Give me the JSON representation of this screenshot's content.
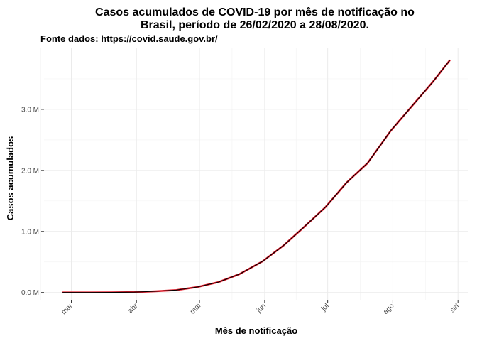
{
  "chart_data": {
    "type": "line",
    "title": "Casos acumulados de COVID-19 por mês de notificação no",
    "title_line2": "Brasil, período de 26/02/2020 a 28/08/2020.",
    "subtitle": "Fonte dados: https://covid.saude.gov.br/",
    "xlabel": "Mês de notificação",
    "ylabel": "Casos acumulados",
    "x_ticks": [
      {
        "label": "mar",
        "date": "2020-03-01"
      },
      {
        "label": "abr",
        "date": "2020-04-01"
      },
      {
        "label": "mai",
        "date": "2020-05-01"
      },
      {
        "label": "jun",
        "date": "2020-06-01"
      },
      {
        "label": "jul",
        "date": "2020-07-01"
      },
      {
        "label": "ago",
        "date": "2020-08-01"
      },
      {
        "label": "set",
        "date": "2020-09-01"
      }
    ],
    "y_ticks": [
      {
        "label": "0.0 M",
        "value": 0
      },
      {
        "label": "1.0 M",
        "value": 1000000
      },
      {
        "label": "2.0 M",
        "value": 2000000
      },
      {
        "label": "3.0 M",
        "value": 3000000
      }
    ],
    "xlim": [
      "2020-02-17",
      "2020-09-06"
    ],
    "ylim": [
      -120000,
      4000000
    ],
    "grid": true,
    "line_color": "#000000",
    "outline_color": "#e8202f",
    "series": [
      {
        "x": [
          "2020-02-26",
          "2020-03-10",
          "2020-03-20",
          "2020-03-31",
          "2020-04-10",
          "2020-04-20",
          "2020-04-30",
          "2020-05-10",
          "2020-05-20",
          "2020-05-31",
          "2020-06-10",
          "2020-06-20",
          "2020-06-30",
          "2020-07-10",
          "2020-07-20",
          "2020-07-31",
          "2020-08-10",
          "2020-08-20",
          "2020-08-28"
        ],
        "y": [
          0,
          30,
          1000,
          6000,
          20000,
          40000,
          90000,
          170000,
          300000,
          510000,
          770000,
          1080000,
          1400000,
          1800000,
          2120000,
          2650000,
          3050000,
          3450000,
          3800000
        ]
      }
    ]
  }
}
